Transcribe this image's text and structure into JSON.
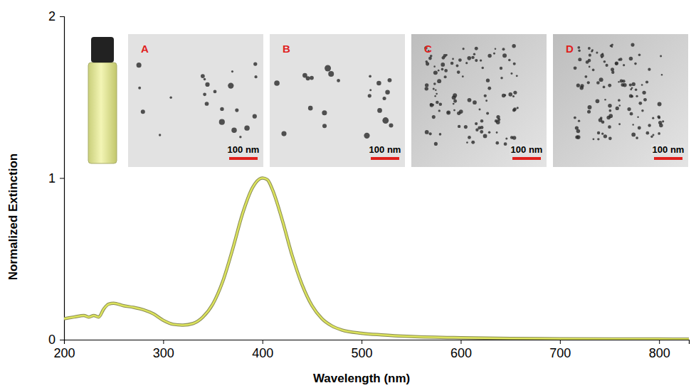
{
  "chart_data": {
    "type": "line",
    "x_label": "Wavelength (nm)",
    "y_label": "Normalized Extinction",
    "x": [
      200,
      210,
      220,
      225,
      230,
      235,
      240,
      245,
      250,
      260,
      270,
      280,
      290,
      300,
      310,
      320,
      330,
      340,
      350,
      360,
      370,
      380,
      390,
      400,
      405,
      410,
      420,
      430,
      440,
      450,
      460,
      470,
      480,
      500,
      520,
      550,
      600,
      650,
      700,
      800,
      830
    ],
    "values": [
      0.13,
      0.14,
      0.15,
      0.14,
      0.15,
      0.14,
      0.19,
      0.22,
      0.225,
      0.21,
      0.2,
      0.185,
      0.16,
      0.12,
      0.095,
      0.09,
      0.1,
      0.14,
      0.22,
      0.36,
      0.56,
      0.78,
      0.94,
      1.0,
      0.99,
      0.93,
      0.74,
      0.52,
      0.34,
      0.21,
      0.13,
      0.085,
      0.06,
      0.04,
      0.03,
      0.02,
      0.012,
      0.008,
      0.006,
      0.004,
      0.003
    ],
    "color": "#dce35c",
    "xlim": [
      200,
      830
    ],
    "ylim": [
      0,
      2
    ],
    "xticks": [
      200,
      300,
      400,
      500,
      600,
      700,
      800
    ],
    "yticks": [
      0,
      1,
      2
    ],
    "annotations": [
      {
        "label": "A",
        "scale_bar": "100 nm"
      },
      {
        "label": "B",
        "scale_bar": "100 nm"
      },
      {
        "label": "C",
        "scale_bar": "100 nm"
      },
      {
        "label": "D",
        "scale_bar": "100 nm"
      }
    ]
  }
}
